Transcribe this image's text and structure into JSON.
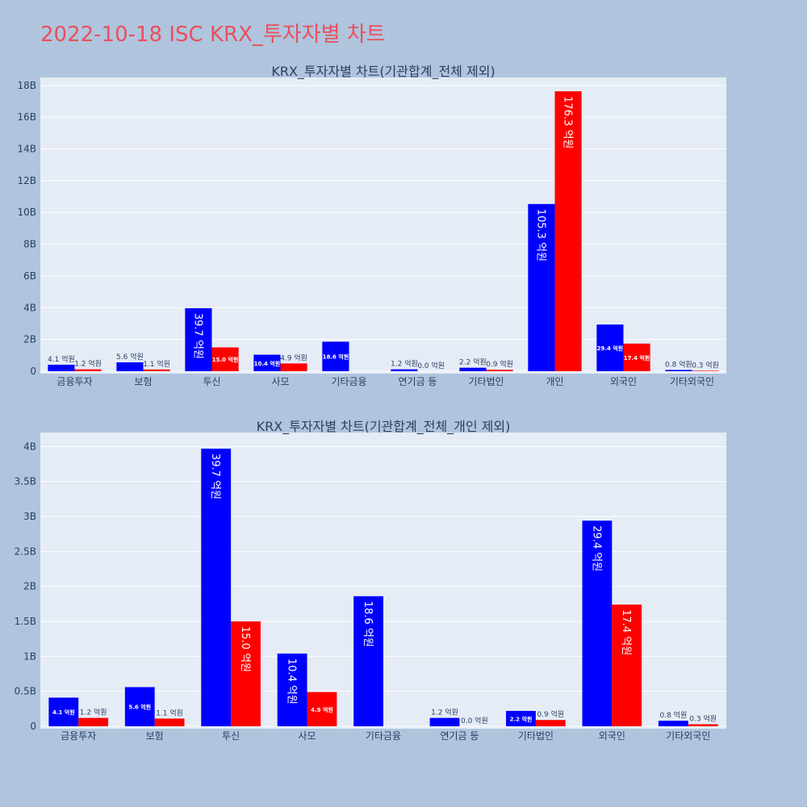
{
  "title": "2022-10-18 ISC KRX_투자자별 차트",
  "colors": {
    "background": "#b0c4de",
    "plot_bg": "#e5ecf6",
    "series_1": "#0000ff",
    "series_2": "#ff0000",
    "title": "#e8505b"
  },
  "chart_data": [
    {
      "type": "bar",
      "title": "KRX_투자자별 차트(기관합계_전체 제외)",
      "categories": [
        "금융투자",
        "보험",
        "투신",
        "사모",
        "기타금융",
        "연기금 등",
        "기타법인",
        "개인",
        "외국인",
        "기타외국인"
      ],
      "series": [
        {
          "color": "#0000ff",
          "values": [
            0.41,
            0.56,
            3.97,
            1.04,
            1.86,
            0.12,
            0.22,
            10.53,
            2.94,
            0.08
          ],
          "labels": [
            "4.1 억원",
            "5.6 억원",
            "39.7 억원",
            "10.4 억원",
            "18.6 억원",
            "1.2 억원",
            "2.2 억원",
            "105.3 억원",
            "29.4 억원",
            "0.8 억원"
          ]
        },
        {
          "color": "#ff0000",
          "values": [
            0.12,
            0.11,
            1.5,
            0.49,
            0,
            0.0,
            0.09,
            17.63,
            1.74,
            0.03
          ],
          "labels": [
            "1.2 억원",
            "1.1 억원",
            "15.0 억원",
            "4.9 억원",
            "",
            "0.0 억원",
            "0.9 억원",
            "176.3 억원",
            "17.4 억원",
            "0.3 억원"
          ]
        }
      ],
      "yticks": [
        "0",
        "2B",
        "4B",
        "6B",
        "8B",
        "10B",
        "12B",
        "14B",
        "16B",
        "18B"
      ],
      "ylim": [
        0,
        18.5
      ],
      "grid": true
    },
    {
      "type": "bar",
      "title": "KRX_투자자별 차트(기관합계_전체_개인 제외)",
      "categories": [
        "금융투자",
        "보험",
        "투신",
        "사모",
        "기타금융",
        "연기금 등",
        "기타법인",
        "외국인",
        "기타외국인"
      ],
      "series": [
        {
          "color": "#0000ff",
          "values": [
            0.41,
            0.56,
            3.97,
            1.04,
            1.86,
            0.12,
            0.22,
            2.94,
            0.08
          ],
          "labels": [
            "4.1 억원",
            "5.6 억원",
            "39.7 억원",
            "10.4 억원",
            "18.6 억원",
            "1.2 억원",
            "2.2 억원",
            "29.4 억원",
            "0.8 억원"
          ]
        },
        {
          "color": "#ff0000",
          "values": [
            0.12,
            0.11,
            1.5,
            0.49,
            0,
            0.0,
            0.09,
            1.74,
            0.03
          ],
          "labels": [
            "1.2 억원",
            "1.1 억원",
            "15.0 억원",
            "4.9 억원",
            "",
            "0.0 억원",
            "0.9 억원",
            "17.4 억원",
            "0.3 억원"
          ]
        }
      ],
      "yticks": [
        "0",
        "0.5B",
        "1B",
        "1.5B",
        "2B",
        "2.5B",
        "3B",
        "3.5B",
        "4B"
      ],
      "ylim": [
        0,
        4.2
      ],
      "grid": true
    }
  ]
}
